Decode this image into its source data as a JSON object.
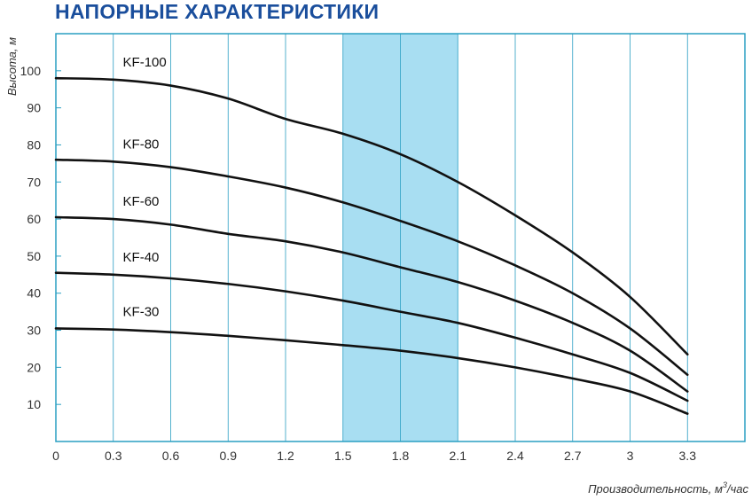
{
  "title": "НАПОРНЫЕ ХАРАКТЕРИСТИКИ",
  "colors": {
    "title": "#1a4e9c",
    "frame": "#2a9fc2",
    "band": "#a8def2",
    "curve": "#111111"
  },
  "chart_data": {
    "type": "line",
    "title": "НАПОРНЫЕ ХАРАКТЕРИСТИКИ",
    "xlabel": "Производительность, м",
    "xlabel_sup": "3",
    "xlabel_suffix": "/час",
    "ylabel": "Высота, м",
    "xlim": [
      0,
      3.6
    ],
    "ylim": [
      0,
      110
    ],
    "xticks": [
      "0",
      "0.3",
      "0.6",
      "0.9",
      "1.2",
      "1.5",
      "1.8",
      "2.1",
      "2.4",
      "2.7",
      "3",
      "3.3"
    ],
    "yticks": [
      "10",
      "20",
      "30",
      "40",
      "50",
      "60",
      "70",
      "80",
      "90",
      "100"
    ],
    "grid": true,
    "highlight_band": [
      1.5,
      2.1
    ],
    "x": [
      0,
      0.3,
      0.6,
      0.9,
      1.2,
      1.5,
      1.8,
      2.1,
      2.4,
      2.7,
      3.0,
      3.3
    ],
    "series": [
      {
        "name": "KF-100",
        "values": [
          98,
          97.6,
          96,
          92.5,
          87,
          83,
          77.5,
          70,
          61,
          51,
          39,
          23.5
        ]
      },
      {
        "name": "KF-80",
        "values": [
          76,
          75.5,
          74,
          71.5,
          68.5,
          64.5,
          59.5,
          54,
          47.5,
          40,
          30.5,
          18
        ]
      },
      {
        "name": "KF-60",
        "values": [
          60.5,
          60,
          58.5,
          56,
          54,
          51,
          47,
          43,
          38,
          32,
          24.5,
          13.5
        ]
      },
      {
        "name": "KF-40",
        "values": [
          45.5,
          45,
          44,
          42.5,
          40.5,
          38,
          35,
          32,
          28,
          23.5,
          18.5,
          11
        ]
      },
      {
        "name": "KF-30",
        "values": [
          30.5,
          30.2,
          29.5,
          28.5,
          27.3,
          26,
          24.5,
          22.5,
          20,
          17,
          13.5,
          7.5
        ]
      }
    ]
  }
}
